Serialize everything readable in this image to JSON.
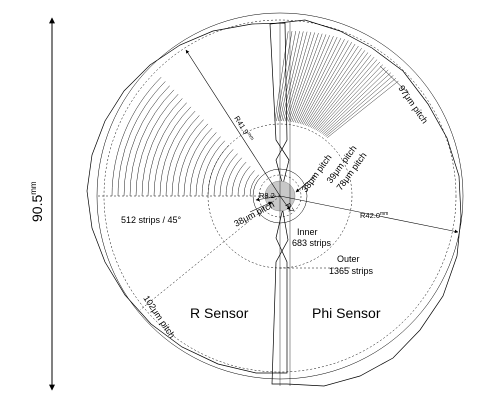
{
  "labels": {
    "height_value": "90.5",
    "height_unit": "mm",
    "r_sensor_title": "R Sensor",
    "phi_sensor_title": "Phi Sensor",
    "strips_45": "512 strips / 45°",
    "pitch_102": "102μm pitch",
    "pitch_38_r": "38μm pitch",
    "pitch_38_phi": "38μm pitch",
    "pitch_39": "39μm pitch",
    "pitch_78": "78μm pitch",
    "pitch_97": "97μm pitch",
    "r41": "R41.9",
    "r41_unit": "mm",
    "r42": "R42.0",
    "r42_unit": "mm",
    "r82": "R8.2",
    "r7": "R7",
    "inner": "Inner",
    "inner_strips": "683 strips",
    "outer": "Outer",
    "outer_strips": "1365 strips"
  }
}
